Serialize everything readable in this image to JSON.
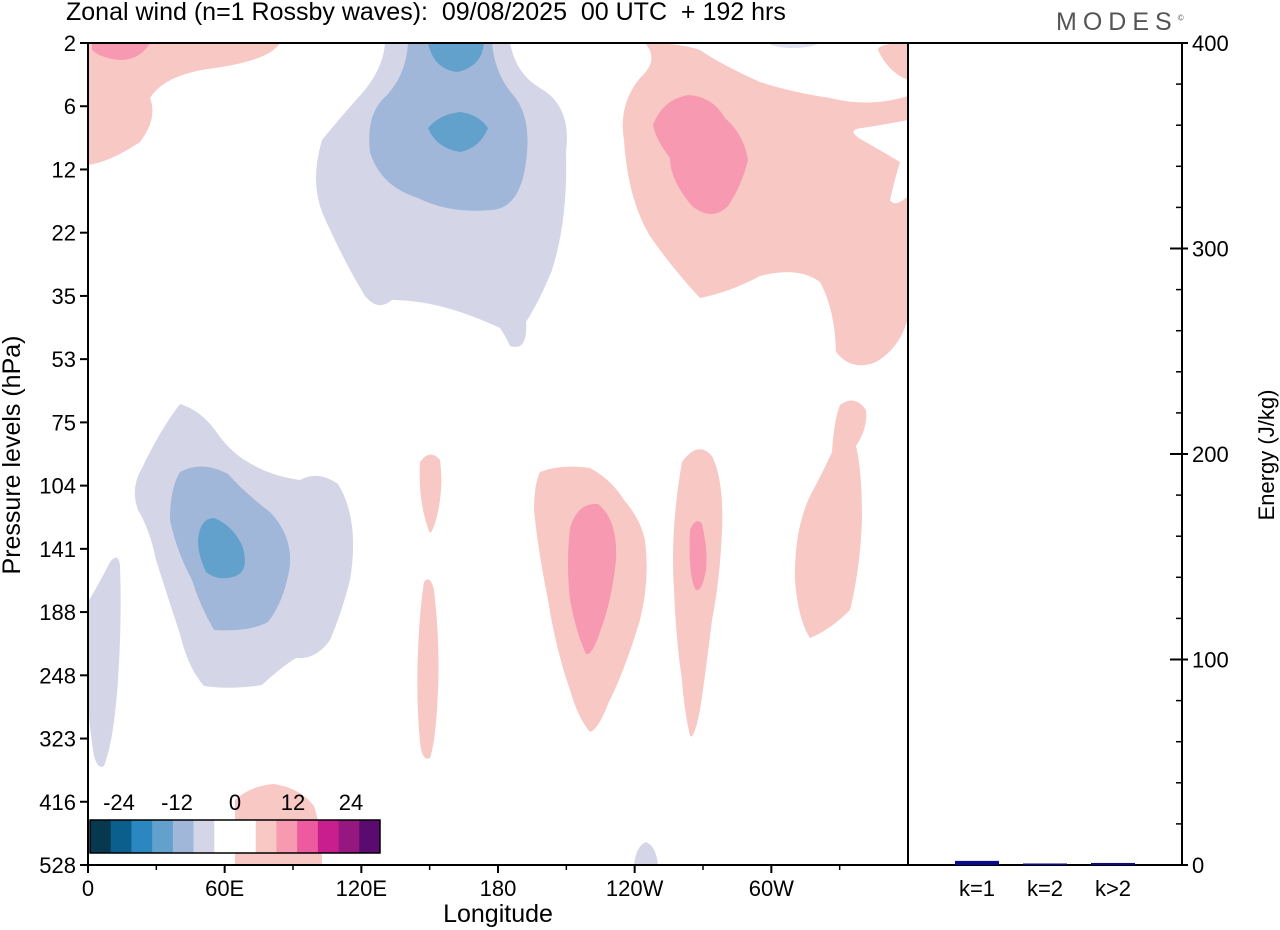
{
  "title": "Zonal wind (n=1 Rossby waves):  09/08/2025  00 UTC  + 192 hrs",
  "logo": {
    "text": "MODES",
    "mark": "©"
  },
  "colors": {
    "neg": [
      "#08384f",
      "#0a5f8d",
      "#2a87c0",
      "#62a1cc",
      "#a0b7da",
      "#d4d6e8"
    ],
    "zero": "#ffffff",
    "pos": [
      "#f8c8c4",
      "#f799b0",
      "#ed5a9e",
      "#c91f8e",
      "#941880",
      "#5b0b70"
    ],
    "bar": "#0a0a8c"
  },
  "chart_data": [
    {
      "type": "heatmap",
      "title": "Zonal wind (n=1 Rossby waves)",
      "xlabel": "Longitude",
      "ylabel": "Pressure levels (hPa)",
      "x_ticks": [
        "0",
        "60E",
        "120E",
        "180",
        "120W",
        "60W"
      ],
      "y_ticks": [
        "2",
        "6",
        "12",
        "22",
        "35",
        "53",
        "75",
        "104",
        "141",
        "188",
        "248",
        "323",
        "416",
        "528"
      ],
      "colorbar": {
        "ticks": [
          "-24",
          "-12",
          "0",
          "12",
          "24"
        ],
        "levels": [
          -30,
          -25,
          -20,
          -15,
          -10,
          -5,
          0,
          5,
          10,
          15,
          20,
          25,
          30
        ]
      }
    },
    {
      "type": "bar",
      "categories": [
        "k=1",
        "k=2",
        "k>2"
      ],
      "values": [
        2,
        0.5,
        1
      ],
      "ylabel": "Energy (J/kg)",
      "ylim": [
        0,
        400
      ],
      "y_ticks": [
        "0",
        "100",
        "200",
        "300",
        "400"
      ]
    }
  ]
}
